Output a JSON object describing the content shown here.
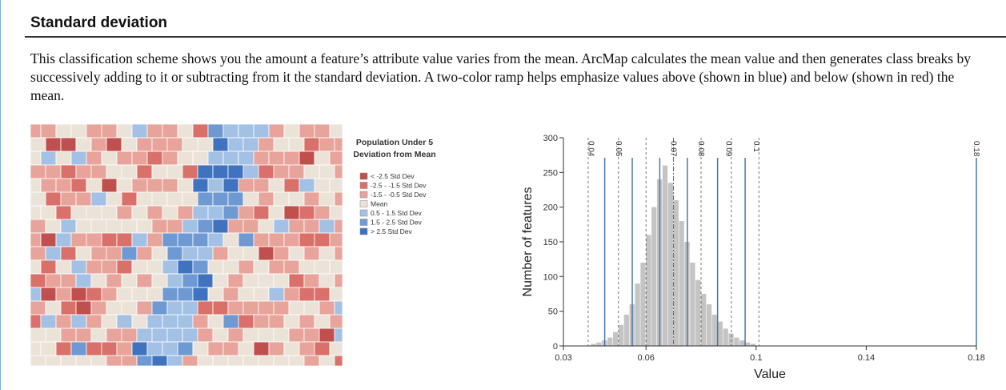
{
  "header": {
    "title": "Standard deviation"
  },
  "paragraph": "This classification scheme shows you the amount a feature’s attribute value varies from the mean. ArcMap calculates the mean value and then generates class breaks by successively adding to it or subtracting from it the standard deviation. A two-color ramp helps emphasize values above (shown in blue) and below (shown in red) the mean.",
  "map_legend": {
    "title": [
      "Population Under 5",
      "Deviation from Mean"
    ],
    "items": [
      {
        "label": "< -2.5 Std Dev",
        "color": "#c0504d"
      },
      {
        "label": "-2.5 - -1.5 Std Dev",
        "color": "#d9716a"
      },
      {
        "label": "-1.5 - -0.5 Std Dev",
        "color": "#e8a39b"
      },
      {
        "label": "Mean",
        "color": "#ebe3d8"
      },
      {
        "label": "0.5 - 1.5 Std Dev",
        "color": "#a3c1e5"
      },
      {
        "label": "1.5 - 2.5 Std Dev",
        "color": "#6f99d3"
      },
      {
        "label": "> 2.5 Std Dev",
        "color": "#3f72bf"
      }
    ]
  },
  "chart_data": {
    "type": "histogram",
    "bins": [
      0.04,
      0.042,
      0.044,
      0.046,
      0.048,
      0.05,
      0.052,
      0.054,
      0.056,
      0.058,
      0.06,
      0.062,
      0.064,
      0.066,
      0.068,
      0.07,
      0.072,
      0.074,
      0.076,
      0.078,
      0.08,
      0.082,
      0.084,
      0.086,
      0.088,
      0.09,
      0.092,
      0.094,
      0.096,
      0.098,
      0.1
    ],
    "values": [
      3,
      5,
      8,
      12,
      20,
      30,
      45,
      60,
      90,
      120,
      160,
      200,
      240,
      260,
      235,
      210,
      180,
      150,
      120,
      95,
      75,
      60,
      45,
      35,
      25,
      18,
      12,
      8,
      5,
      3
    ],
    "color": "#c4c4c4",
    "xlabel": "Value",
    "ylabel": "Number of features",
    "xlim": [
      0.03,
      0.18
    ],
    "xticks": [
      0.03,
      0.06,
      0.1,
      0.14,
      0.18
    ],
    "ylim": [
      0,
      300
    ],
    "yticks": [
      0,
      50,
      100,
      150,
      200,
      250,
      300
    ],
    "class_breaks": [
      0.045,
      0.055,
      0.065,
      0.075,
      0.086,
      0.096,
      0.18
    ],
    "break_color": "#4a7aaa",
    "std_lines": [
      0.039,
      0.05,
      0.06,
      0.08,
      0.091,
      0.101
    ],
    "mean_line": 0.07,
    "break_labels": [
      0.04,
      0.05,
      0.07,
      0.08,
      0.09,
      0.1,
      0.18
    ]
  }
}
